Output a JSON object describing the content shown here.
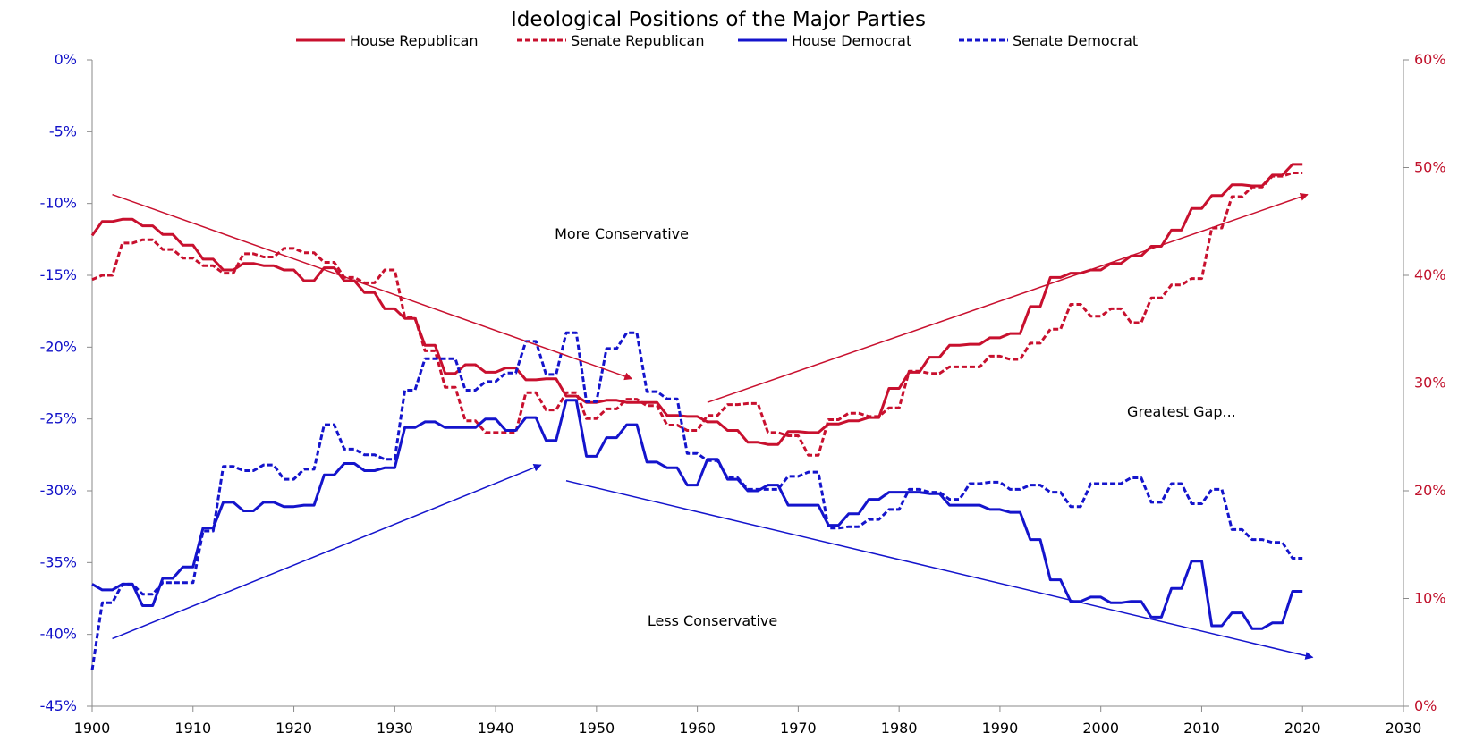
{
  "chart_data": {
    "type": "line",
    "title": "Ideological Positions of the Major Parties",
    "legend_placement": "top",
    "grid": false,
    "colors": {
      "republican": "#c8102e",
      "democrat": "#1414cc"
    },
    "x_axis": {
      "range": [
        1900,
        2030
      ],
      "ticks": [
        "1900",
        "1910",
        "1920",
        "1930",
        "1940",
        "1950",
        "1960",
        "1970",
        "1980",
        "1990",
        "2000",
        "2010",
        "2020",
        "2030"
      ]
    },
    "y_left": {
      "range": [
        -45,
        0
      ],
      "unit": "%",
      "ticks": [
        "0%",
        "-5%",
        "-10%",
        "-15%",
        "-20%",
        "-25%",
        "-30%",
        "-35%",
        "-40%",
        "-45%"
      ]
    },
    "y_right": {
      "range": [
        0,
        60
      ],
      "unit": "%",
      "ticks": [
        "60%",
        "50%",
        "40%",
        "30%",
        "20%",
        "10%",
        "0%"
      ]
    },
    "series": [
      {
        "name": "House Republican",
        "axis": "right",
        "color": "#c8102e",
        "dash": "solid",
        "x": [
          1900,
          1901,
          1902,
          1903,
          1904,
          1905,
          1906,
          1907,
          1908,
          1909,
          1910,
          1911,
          1912,
          1913,
          1914,
          1915,
          1916,
          1917,
          1918,
          1919,
          1920,
          1921,
          1922,
          1923,
          1924,
          1925,
          1926,
          1927,
          1928,
          1929,
          1930,
          1931,
          1932,
          1933,
          1934,
          1935,
          1936,
          1937,
          1938,
          1939,
          1940,
          1941,
          1942,
          1943,
          1944,
          1945,
          1946,
          1947,
          1948,
          1949,
          1950,
          1951,
          1952,
          1953,
          1954,
          1955,
          1956,
          1957,
          1958,
          1959,
          1960,
          1961,
          1962,
          1963,
          1964,
          1965,
          1966,
          1967,
          1968,
          1969,
          1970,
          1971,
          1972,
          1973,
          1974,
          1975,
          1976,
          1977,
          1978,
          1979,
          1980,
          1981,
          1982,
          1983,
          1984,
          1985,
          1986,
          1987,
          1988,
          1989,
          1990,
          1991,
          1992,
          1993,
          1994,
          1995,
          1996,
          1997,
          1998,
          1999,
          2000,
          2001,
          2002,
          2003,
          2004,
          2005,
          2006,
          2007,
          2008,
          2009,
          2010,
          2011,
          2012,
          2013,
          2014,
          2015,
          2016,
          2017,
          2018,
          2019,
          2020
        ],
        "values": [
          43.7,
          45,
          45,
          45.2,
          45.2,
          44.6,
          44.6,
          43.8,
          43.8,
          42.8,
          42.8,
          41.5,
          41.5,
          40.5,
          40.5,
          41.1,
          41.1,
          40.9,
          40.9,
          40.5,
          40.5,
          39.5,
          39.5,
          40.7,
          40.7,
          39.5,
          39.5,
          38.4,
          38.4,
          36.9,
          36.9,
          36,
          36,
          33.5,
          33.5,
          30.9,
          30.9,
          31.7,
          31.7,
          31,
          31,
          31.4,
          31.4,
          30.3,
          30.3,
          30.4,
          30.4,
          28.8,
          28.8,
          28.2,
          28.2,
          28.4,
          28.4,
          28.2,
          28.2,
          28.2,
          28.2,
          27,
          27,
          26.9,
          26.9,
          26.4,
          26.4,
          25.6,
          25.6,
          24.5,
          24.5,
          24.3,
          24.3,
          25.5,
          25.5,
          25.4,
          25.4,
          26.2,
          26.2,
          26.5,
          26.5,
          26.8,
          26.8,
          29.5,
          29.5,
          31,
          31,
          32.4,
          32.4,
          33.5,
          33.5,
          33.6,
          33.6,
          34.2,
          34.2,
          34.6,
          34.6,
          37.1,
          37.1,
          39.8,
          39.8,
          40.2,
          40.2,
          40.5,
          40.5,
          41.1,
          41.1,
          41.8,
          41.8,
          42.7,
          42.7,
          44.2,
          44.2,
          46.2,
          46.2,
          47.4,
          47.4,
          48.4,
          48.4,
          48.3,
          48.3,
          49.3,
          49.3,
          50.3,
          50.3
        ]
      },
      {
        "name": "Senate Republican",
        "axis": "right",
        "color": "#c8102e",
        "dash": "dashed",
        "x": [
          1900,
          1901,
          1902,
          1903,
          1904,
          1905,
          1906,
          1907,
          1908,
          1909,
          1910,
          1911,
          1912,
          1913,
          1914,
          1915,
          1916,
          1917,
          1918,
          1919,
          1920,
          1921,
          1922,
          1923,
          1924,
          1925,
          1926,
          1927,
          1928,
          1929,
          1930,
          1931,
          1932,
          1933,
          1934,
          1935,
          1936,
          1937,
          1938,
          1939,
          1940,
          1941,
          1942,
          1943,
          1944,
          1945,
          1946,
          1947,
          1948,
          1949,
          1950,
          1951,
          1952,
          1953,
          1954,
          1955,
          1956,
          1957,
          1958,
          1959,
          1960,
          1961,
          1962,
          1963,
          1964,
          1965,
          1966,
          1967,
          1968,
          1969,
          1970,
          1971,
          1972,
          1973,
          1974,
          1975,
          1976,
          1977,
          1978,
          1979,
          1980,
          1981,
          1982,
          1983,
          1984,
          1985,
          1986,
          1987,
          1988,
          1989,
          1990,
          1991,
          1992,
          1993,
          1994,
          1995,
          1996,
          1997,
          1998,
          1999,
          2000,
          2001,
          2002,
          2003,
          2004,
          2005,
          2006,
          2007,
          2008,
          2009,
          2010,
          2011,
          2012,
          2013,
          2014,
          2015,
          2016,
          2017,
          2018,
          2019,
          2020
        ],
        "values": [
          39.6,
          40,
          40,
          43,
          43,
          43.3,
          43.3,
          42.4,
          42.4,
          41.6,
          41.6,
          40.9,
          40.9,
          40.2,
          40.2,
          42,
          42,
          41.7,
          41.7,
          42.5,
          42.5,
          42.1,
          42.1,
          41.2,
          41.2,
          39.8,
          39.8,
          39.3,
          39.3,
          40.5,
          40.5,
          36.1,
          36.1,
          33,
          33,
          29.6,
          29.6,
          26.5,
          26.5,
          25.4,
          25.4,
          25.4,
          25.4,
          29.1,
          29.1,
          27.5,
          27.5,
          29.1,
          29.1,
          26.7,
          26.7,
          27.6,
          27.6,
          28.5,
          28.5,
          27.9,
          27.9,
          26.1,
          26.1,
          25.6,
          25.6,
          27,
          27,
          28,
          28,
          28.1,
          28.1,
          25.4,
          25.4,
          25.1,
          25.1,
          23.3,
          23.3,
          26.6,
          26.6,
          27.2,
          27.2,
          26.9,
          26.9,
          27.7,
          27.7,
          31.1,
          31.1,
          30.9,
          30.9,
          31.5,
          31.5,
          31.5,
          31.5,
          32.5,
          32.5,
          32.2,
          32.2,
          33.7,
          33.7,
          35,
          35,
          37.3,
          37.3,
          36.2,
          36.2,
          36.9,
          36.9,
          35.6,
          35.6,
          37.9,
          37.9,
          39.1,
          39.1,
          39.7,
          39.7,
          44.4,
          44.4,
          47.3,
          47.3,
          48.2,
          48.2,
          49.2,
          49.2,
          49.5,
          49.5
        ]
      },
      {
        "name": "House Democrat",
        "axis": "left",
        "color": "#1414cc",
        "dash": "solid",
        "x": [
          1900,
          1901,
          1902,
          1903,
          1904,
          1905,
          1906,
          1907,
          1908,
          1909,
          1910,
          1911,
          1912,
          1913,
          1914,
          1915,
          1916,
          1917,
          1918,
          1919,
          1920,
          1921,
          1922,
          1923,
          1924,
          1925,
          1926,
          1927,
          1928,
          1929,
          1930,
          1931,
          1932,
          1933,
          1934,
          1935,
          1936,
          1937,
          1938,
          1939,
          1940,
          1941,
          1942,
          1943,
          1944,
          1945,
          1946,
          1947,
          1948,
          1949,
          1950,
          1951,
          1952,
          1953,
          1954,
          1955,
          1956,
          1957,
          1958,
          1959,
          1960,
          1961,
          1962,
          1963,
          1964,
          1965,
          1966,
          1967,
          1968,
          1969,
          1970,
          1971,
          1972,
          1973,
          1974,
          1975,
          1976,
          1977,
          1978,
          1979,
          1980,
          1981,
          1982,
          1983,
          1984,
          1985,
          1986,
          1987,
          1988,
          1989,
          1990,
          1991,
          1992,
          1993,
          1994,
          1995,
          1996,
          1997,
          1998,
          1999,
          2000,
          2001,
          2002,
          2003,
          2004,
          2005,
          2006,
          2007,
          2008,
          2009,
          2010,
          2011,
          2012,
          2013,
          2014,
          2015,
          2016,
          2017,
          2018,
          2019,
          2020
        ],
        "values": [
          -36.5,
          -36.9,
          -36.9,
          -36.5,
          -36.5,
          -38,
          -38,
          -36.1,
          -36.1,
          -35.3,
          -35.3,
          -32.6,
          -32.6,
          -30.8,
          -30.8,
          -31.4,
          -31.4,
          -30.8,
          -30.8,
          -31.1,
          -31.1,
          -31,
          -31,
          -28.9,
          -28.9,
          -28.1,
          -28.1,
          -28.6,
          -28.6,
          -28.4,
          -28.4,
          -25.6,
          -25.6,
          -25.2,
          -25.2,
          -25.6,
          -25.6,
          -25.6,
          -25.6,
          -25,
          -25,
          -25.8,
          -25.8,
          -24.9,
          -24.9,
          -26.5,
          -26.5,
          -23.7,
          -23.7,
          -27.6,
          -27.6,
          -26.3,
          -26.3,
          -25.4,
          -25.4,
          -28,
          -28,
          -28.4,
          -28.4,
          -29.6,
          -29.6,
          -27.8,
          -27.8,
          -29.2,
          -29.2,
          -30,
          -30,
          -29.6,
          -29.6,
          -31,
          -31,
          -31,
          -31,
          -32.4,
          -32.4,
          -31.6,
          -31.6,
          -30.6,
          -30.6,
          -30.1,
          -30.1,
          -30.1,
          -30.1,
          -30.2,
          -30.2,
          -31,
          -31,
          -31,
          -31,
          -31.3,
          -31.3,
          -31.5,
          -31.5,
          -33.4,
          -33.4,
          -36.2,
          -36.2,
          -37.7,
          -37.7,
          -37.4,
          -37.4,
          -37.8,
          -37.8,
          -37.7,
          -37.7,
          -38.8,
          -38.8,
          -36.8,
          -36.8,
          -34.9,
          -34.9,
          -39.4,
          -39.4,
          -38.5,
          -38.5,
          -39.6,
          -39.6,
          -39.2,
          -39.2,
          -37,
          -37
        ]
      },
      {
        "name": "Senate Democrat",
        "axis": "left",
        "color": "#1414cc",
        "dash": "dashed",
        "x": [
          1900,
          1901,
          1902,
          1903,
          1904,
          1905,
          1906,
          1907,
          1908,
          1909,
          1910,
          1911,
          1912,
          1913,
          1914,
          1915,
          1916,
          1917,
          1918,
          1919,
          1920,
          1921,
          1922,
          1923,
          1924,
          1925,
          1926,
          1927,
          1928,
          1929,
          1930,
          1931,
          1932,
          1933,
          1934,
          1935,
          1936,
          1937,
          1938,
          1939,
          1940,
          1941,
          1942,
          1943,
          1944,
          1945,
          1946,
          1947,
          1948,
          1949,
          1950,
          1951,
          1952,
          1953,
          1954,
          1955,
          1956,
          1957,
          1958,
          1959,
          1960,
          1961,
          1962,
          1963,
          1964,
          1965,
          1966,
          1967,
          1968,
          1969,
          1970,
          1971,
          1972,
          1973,
          1974,
          1975,
          1976,
          1977,
          1978,
          1979,
          1980,
          1981,
          1982,
          1983,
          1984,
          1985,
          1986,
          1987,
          1988,
          1989,
          1990,
          1991,
          1992,
          1993,
          1994,
          1995,
          1996,
          1997,
          1998,
          1999,
          2000,
          2001,
          2002,
          2003,
          2004,
          2005,
          2006,
          2007,
          2008,
          2009,
          2010,
          2011,
          2012,
          2013,
          2014,
          2015,
          2016,
          2017,
          2018,
          2019,
          2020
        ],
        "values": [
          -42.5,
          -37.8,
          -37.8,
          -36.5,
          -36.5,
          -37.2,
          -37.2,
          -36.4,
          -36.4,
          -36.4,
          -36.4,
          -32.8,
          -32.8,
          -28.3,
          -28.3,
          -28.6,
          -28.6,
          -28.2,
          -28.2,
          -29.2,
          -29.2,
          -28.5,
          -28.5,
          -25.4,
          -25.4,
          -27.1,
          -27.1,
          -27.5,
          -27.5,
          -27.8,
          -27.8,
          -23,
          -23,
          -20.8,
          -20.8,
          -20.8,
          -20.8,
          -23,
          -23,
          -22.4,
          -22.4,
          -21.8,
          -21.8,
          -19.6,
          -19.6,
          -21.9,
          -21.9,
          -19,
          -19,
          -23.8,
          -23.8,
          -20.1,
          -20.1,
          -19,
          -19,
          -23.1,
          -23.1,
          -23.6,
          -23.6,
          -27.4,
          -27.4,
          -27.9,
          -27.9,
          -29.1,
          -29.1,
          -29.9,
          -29.9,
          -29.9,
          -29.9,
          -29,
          -29,
          -28.7,
          -28.7,
          -32.6,
          -32.6,
          -32.5,
          -32.5,
          -32,
          -32,
          -31.3,
          -31.3,
          -29.9,
          -29.9,
          -30.1,
          -30.1,
          -30.6,
          -30.6,
          -29.5,
          -29.5,
          -29.4,
          -29.4,
          -29.9,
          -29.9,
          -29.6,
          -29.6,
          -30.1,
          -30.1,
          -31.1,
          -31.1,
          -29.5,
          -29.5,
          -29.5,
          -29.5,
          -29.1,
          -29.1,
          -30.8,
          -30.8,
          -29.5,
          -29.5,
          -30.9,
          -30.9,
          -29.9,
          -29.9,
          -32.7,
          -32.7,
          -33.4,
          -33.4,
          -33.6,
          -33.6,
          -34.7,
          -34.7
        ]
      }
    ],
    "trend_arrows": [
      {
        "color": "#c8102e",
        "axis": "right",
        "from": {
          "x": 1902,
          "y": 47.5
        },
        "to": {
          "x": 1953.5,
          "y": 30.4
        }
      },
      {
        "color": "#c8102e",
        "axis": "right",
        "from": {
          "x": 1961,
          "y": 28.2
        },
        "to": {
          "x": 2020.5,
          "y": 47.5
        }
      },
      {
        "color": "#1414cc",
        "axis": "left",
        "from": {
          "x": 1902,
          "y": -40.3
        },
        "to": {
          "x": 1944.5,
          "y": -28.2
        }
      },
      {
        "color": "#1414cc",
        "axis": "left",
        "from": {
          "x": 1947,
          "y": -29.3
        },
        "to": {
          "x": 2021,
          "y": -41.6
        }
      }
    ],
    "annotations": [
      {
        "text": "More Conservative",
        "x": 1952.5,
        "y": 43.8,
        "axis": "right"
      },
      {
        "text": "Greatest Gap...",
        "x": 2008,
        "y": 27.3,
        "axis": "right"
      },
      {
        "text": "Less Conservative",
        "x": 1961.5,
        "y": -39.1,
        "axis": "left"
      }
    ]
  }
}
